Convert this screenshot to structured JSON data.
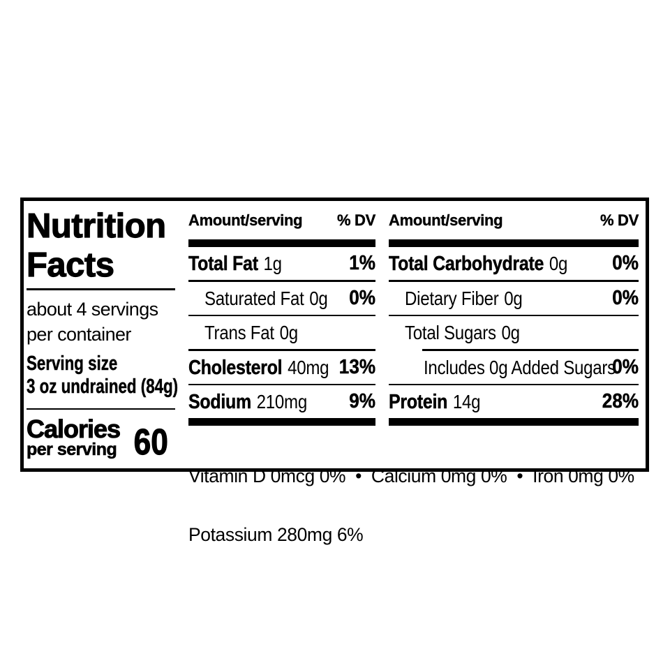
{
  "nutrition": {
    "title_line1": "Nutrition",
    "title_line2": "Facts",
    "servings_line1": "about 4 servings",
    "servings_line2": "per container",
    "serving_size_label": "Serving size",
    "serving_size_value": "3 oz undrained (84g)",
    "calories_label": "Calories",
    "calories_sublabel": "per serving",
    "calories_value": "60",
    "column_header": {
      "amount": "Amount/serving",
      "dv": "% DV"
    },
    "columns": {
      "mid": {
        "rows": [
          {
            "label": "Total Fat",
            "amount": "1g",
            "dv": "1%"
          },
          {
            "label": "Saturated Fat",
            "amount": "0g",
            "dv": "0%"
          },
          {
            "label": "Trans Fat",
            "amount": "0g",
            "dv": ""
          },
          {
            "label": "Cholesterol",
            "amount": "40mg",
            "dv": "13%"
          },
          {
            "label": "Sodium",
            "amount": "210mg",
            "dv": "9%"
          }
        ]
      },
      "right": {
        "rows": [
          {
            "label": "Total Carbohydrate",
            "amount": "0g",
            "dv": "0%"
          },
          {
            "label": "Dietary Fiber",
            "amount": "0g",
            "dv": "0%"
          },
          {
            "label": "Total Sugars",
            "amount": "0g",
            "dv": ""
          },
          {
            "label": "Includes 0g Added Sugars",
            "amount": "",
            "dv": "0%"
          },
          {
            "label": "Protein",
            "amount": "14g",
            "dv": "28%"
          }
        ]
      }
    },
    "footer_line1": "Vitamin D 0mcg 0%  •  Calcium 0mg 0%  •  Iron 0mg 0%",
    "footer_line2": "Potassium 280mg 6%",
    "colors": {
      "ink": "#000000",
      "paper": "#ffffff"
    }
  }
}
